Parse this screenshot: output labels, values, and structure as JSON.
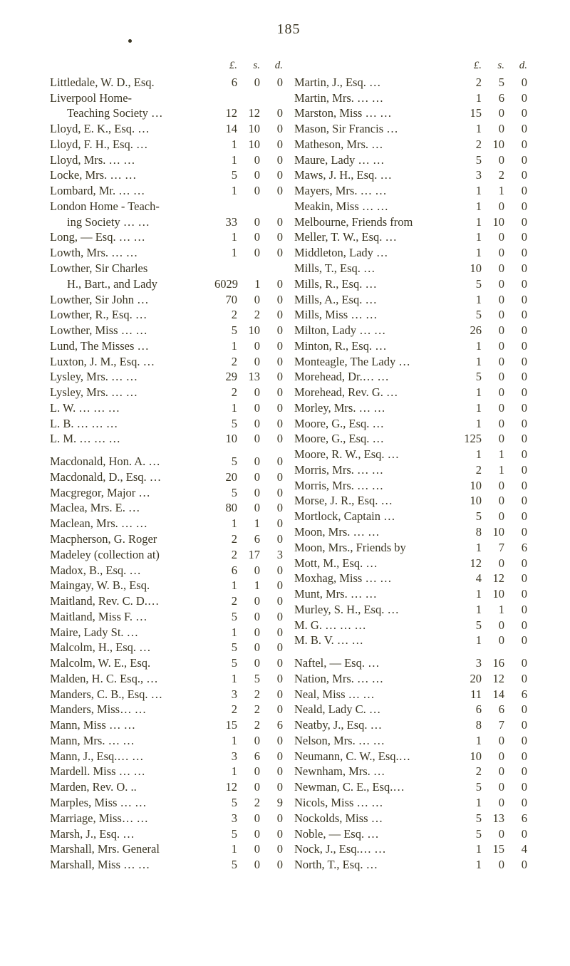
{
  "page_number": "185",
  "currency_headers": [
    "£.",
    "s.",
    "d."
  ],
  "left": [
    {
      "name": "Littledale, W. D., Esq.",
      "l": "6",
      "s": "0",
      "d": "0"
    },
    {
      "name": "Liverpool Home-",
      "cont": true
    },
    {
      "name": "Teaching Society   …",
      "l": "12",
      "s": "12",
      "d": "0",
      "indent": true
    },
    {
      "name": "Lloyd, E. K., Esq.     …",
      "l": "14",
      "s": "10",
      "d": "0"
    },
    {
      "name": "Lloyd, F. H., Esq.    …",
      "l": "1",
      "s": "10",
      "d": "0"
    },
    {
      "name": "Lloyd, Mrs.    …       …",
      "l": "1",
      "s": "0",
      "d": "0"
    },
    {
      "name": "Locke, Mrs.    …       …",
      "l": "5",
      "s": "0",
      "d": "0"
    },
    {
      "name": "Lombard, Mr. …       …",
      "l": "1",
      "s": "0",
      "d": "0"
    },
    {
      "name": "London  Home - Teach-",
      "cont": true
    },
    {
      "name": "ing Society …       …",
      "l": "33",
      "s": "0",
      "d": "0",
      "indent": true
    },
    {
      "name": "Long, — Esq. …       …",
      "l": "1",
      "s": "0",
      "d": "0"
    },
    {
      "name": "Lowth, Mrs.  …       …",
      "l": "1",
      "s": "0",
      "d": "0"
    },
    {
      "name": "Lowther,  Sir  Charles",
      "cont": true
    },
    {
      "name": "H., Bart., and Lady",
      "l": "6029",
      "s": "1",
      "d": "0",
      "indent": true
    },
    {
      "name": "Lowther, Sir John     …",
      "l": "70",
      "s": "0",
      "d": "0"
    },
    {
      "name": "Lowther, R., Esq.     …",
      "l": "2",
      "s": "2",
      "d": "0"
    },
    {
      "name": "Lowther, Miss …      …",
      "l": "5",
      "s": "10",
      "d": "0"
    },
    {
      "name": "Lund, The Misses     …",
      "l": "1",
      "s": "0",
      "d": "0"
    },
    {
      "name": "Luxton, J. M., Esq.   …",
      "l": "2",
      "s": "0",
      "d": "0"
    },
    {
      "name": "Lysley, Mrs.    …      …",
      "l": "29",
      "s": "13",
      "d": "0"
    },
    {
      "name": "Lysley, Mrs.    …      …",
      "l": "2",
      "s": "0",
      "d": "0"
    },
    {
      "name": "L. W.   …       …       …",
      "l": "1",
      "s": "0",
      "d": "0"
    },
    {
      "name": "L. B.    …       …       …",
      "l": "5",
      "s": "0",
      "d": "0"
    },
    {
      "name": "L. M.   …       …       …",
      "l": "10",
      "s": "0",
      "d": "0"
    },
    {
      "spacer": true
    },
    {
      "name": "Macdonald, Hon. A. …",
      "l": "5",
      "s": "0",
      "d": "0"
    },
    {
      "name": "Macdonald, D., Esq.  …",
      "l": "20",
      "s": "0",
      "d": "0"
    },
    {
      "name": "Macgregor, Major     …",
      "l": "5",
      "s": "0",
      "d": "0"
    },
    {
      "name": "Maclea, Mrs. E.       …",
      "l": "80",
      "s": "0",
      "d": "0"
    },
    {
      "name": "Maclean, Mrs. …      …",
      "l": "1",
      "s": "1",
      "d": "0"
    },
    {
      "name": "Macpherson, G.  Roger",
      "l": "2",
      "s": "6",
      "d": "0"
    },
    {
      "name": "Madeley  (collection  at)",
      "l": "2",
      "s": "17",
      "d": "3"
    },
    {
      "name": "Madox, B., Esq.       …",
      "l": "6",
      "s": "0",
      "d": "0"
    },
    {
      "name": "Maingay, W. B., Esq.",
      "l": "1",
      "s": "1",
      "d": "0"
    },
    {
      "name": "Maitland, Rev. C. D.…",
      "l": "2",
      "s": "0",
      "d": "0"
    },
    {
      "name": "Maitland, Miss F.     …",
      "l": "5",
      "s": "0",
      "d": "0"
    },
    {
      "name": "Maire, Lady St.        …",
      "l": "1",
      "s": "0",
      "d": "0"
    },
    {
      "name": "Malcolm, H., Esq.    …",
      "l": "5",
      "s": "0",
      "d": "0"
    },
    {
      "name": "Malcolm, W. E., Esq.",
      "l": "5",
      "s": "0",
      "d": "0"
    },
    {
      "name": "Malden, H. C. Esq., …",
      "l": "1",
      "s": "5",
      "d": "0"
    },
    {
      "name": "Manders, C. B., Esq. …",
      "l": "3",
      "s": "2",
      "d": "0"
    },
    {
      "name": "Manders, Miss…       …",
      "l": "2",
      "s": "2",
      "d": "0"
    },
    {
      "name": "Mann, Miss     …      …",
      "l": "15",
      "s": "2",
      "d": "6"
    },
    {
      "name": "Mann, Mrs.     …      …",
      "l": "1",
      "s": "0",
      "d": "0"
    },
    {
      "name": "Mann, J., Esq.…       …",
      "l": "3",
      "s": "6",
      "d": "0"
    },
    {
      "name": "Mardell. Miss  …      …",
      "l": "1",
      "s": "0",
      "d": "0"
    },
    {
      "name": "Marden, Rev. O.      ..",
      "l": "12",
      "s": "0",
      "d": "0"
    },
    {
      "name": "Marples, Miss …      …",
      "l": "5",
      "s": "2",
      "d": "9"
    },
    {
      "name": "Marriage, Miss…      …",
      "l": "3",
      "s": "0",
      "d": "0"
    },
    {
      "name": "Marsh, J., Esq.        …",
      "l": "5",
      "s": "0",
      "d": "0"
    },
    {
      "name": "Marshall, Mrs. General",
      "l": "1",
      "s": "0",
      "d": "0"
    },
    {
      "name": "Marshall, Miss …      …",
      "l": "5",
      "s": "0",
      "d": "0"
    }
  ],
  "right": [
    {
      "name": "Martin, J., Esq.        …",
      "l": "2",
      "s": "5",
      "d": "0"
    },
    {
      "name": "Martin, Mrs.  …       …",
      "l": "1",
      "s": "6",
      "d": "0"
    },
    {
      "name": "Marston, Miss …      …",
      "l": "15",
      "s": "0",
      "d": "0"
    },
    {
      "name": "Mason, Sir Francis   …",
      "l": "1",
      "s": "0",
      "d": "0"
    },
    {
      "name": "Matheson, Mrs.        …",
      "l": "2",
      "s": "10",
      "d": "0"
    },
    {
      "name": "Maure, Lady   …      …",
      "l": "5",
      "s": "0",
      "d": "0"
    },
    {
      "name": "Maws, J. H., Esq.    …",
      "l": "3",
      "s": "2",
      "d": "0"
    },
    {
      "name": "Mayers, Mrs.  …      …",
      "l": "1",
      "s": "1",
      "d": "0"
    },
    {
      "name": "Meakin, Miss …       …",
      "l": "1",
      "s": "0",
      "d": "0"
    },
    {
      "name": "Melbourne, Friends from",
      "l": "1",
      "s": "10",
      "d": "0"
    },
    {
      "name": "Meller, T. W., Esq.  …",
      "l": "1",
      "s": "0",
      "d": "0"
    },
    {
      "name": "Middleton, Lady       …",
      "l": "1",
      "s": "0",
      "d": "0"
    },
    {
      "name": "Mills, T., Esq.          …",
      "l": "10",
      "s": "0",
      "d": "0"
    },
    {
      "name": "Mills, R., Esq.          …",
      "l": "5",
      "s": "0",
      "d": "0"
    },
    {
      "name": "Mills, A., Esq.          …",
      "l": "1",
      "s": "0",
      "d": "0"
    },
    {
      "name": "Mills, Miss       …     …",
      "l": "5",
      "s": "0",
      "d": "0"
    },
    {
      "name": "Milton, Lady   …      …",
      "l": "26",
      "s": "0",
      "d": "0"
    },
    {
      "name": "Minton, R., Esq.       …",
      "l": "1",
      "s": "0",
      "d": "0"
    },
    {
      "name": "Monteagle, The Lady …",
      "l": "1",
      "s": "0",
      "d": "0"
    },
    {
      "name": "Morehead, Dr.…        …",
      "l": "5",
      "s": "0",
      "d": "0"
    },
    {
      "name": "Morehead, Rev. G.   …",
      "l": "1",
      "s": "0",
      "d": "0"
    },
    {
      "name": "Morley, Mrs.   …      …",
      "l": "1",
      "s": "0",
      "d": "0"
    },
    {
      "name": "Moore, G., Esq.        …",
      "l": "1",
      "s": "0",
      "d": "0"
    },
    {
      "name": "Moore, G., Esq.        …",
      "l": "125",
      "s": "0",
      "d": "0"
    },
    {
      "name": "Moore, R. W., Esq.   …",
      "l": "1",
      "s": "1",
      "d": "0"
    },
    {
      "name": "Morris, Mrs.    …      …",
      "l": "2",
      "s": "1",
      "d": "0"
    },
    {
      "name": "Morris, Mrs.    …      …",
      "l": "10",
      "s": "0",
      "d": "0"
    },
    {
      "name": "Morse, J. R., Esq.    …",
      "l": "10",
      "s": "0",
      "d": "0"
    },
    {
      "name": "Mortlock, Captain     …",
      "l": "5",
      "s": "0",
      "d": "0"
    },
    {
      "name": "Moon, Mrs.      …     …",
      "l": "8",
      "s": "10",
      "d": "0"
    },
    {
      "name": "Moon, Mrs., Friends by",
      "l": "1",
      "s": "7",
      "d": "6"
    },
    {
      "name": "Mott, M., Esq.          …",
      "l": "12",
      "s": "0",
      "d": "0"
    },
    {
      "name": "Moxhag, Miss …      …",
      "l": "4",
      "s": "12",
      "d": "0"
    },
    {
      "name": "Munt, Mrs.      …      …",
      "l": "1",
      "s": "10",
      "d": "0"
    },
    {
      "name": "Murley, S. H., Esq.  …",
      "l": "1",
      "s": "1",
      "d": "0"
    },
    {
      "name": "M. G.   …       …      …",
      "l": "5",
      "s": "0",
      "d": "0"
    },
    {
      "name": "M. B. V.         …      …",
      "l": "1",
      "s": "0",
      "d": "0"
    },
    {
      "spacer": true
    },
    {
      "name": "Naftel, — Esq.          …",
      "l": "3",
      "s": "16",
      "d": "0"
    },
    {
      "name": "Nation, Mrs.   …      …",
      "l": "20",
      "s": "12",
      "d": "0"
    },
    {
      "name": "Neal, Miss       …     …",
      "l": "11",
      "s": "14",
      "d": "6"
    },
    {
      "name": "Neald, Lady C.         …",
      "l": "6",
      "s": "6",
      "d": "0"
    },
    {
      "name": "Neatby, J., Esq.        …",
      "l": "8",
      "s": "7",
      "d": "0"
    },
    {
      "name": "Nelson, Mrs.    …     …",
      "l": "1",
      "s": "0",
      "d": "0"
    },
    {
      "name": "Neumann, C. W., Esq.…",
      "l": "10",
      "s": "0",
      "d": "0"
    },
    {
      "name": "Newnham, Mrs.       …",
      "l": "2",
      "s": "0",
      "d": "0"
    },
    {
      "name": "Newman, C. E., Esq.…",
      "l": "5",
      "s": "0",
      "d": "0"
    },
    {
      "name": "Nicols, Miss    …      …",
      "l": "1",
      "s": "0",
      "d": "0"
    },
    {
      "name": "Nockolds, Miss         …",
      "l": "5",
      "s": "13",
      "d": "6"
    },
    {
      "name": "Noble, — Esq.          …",
      "l": "5",
      "s": "0",
      "d": "0"
    },
    {
      "name": "Nock, J., Esq.…       …",
      "l": "1",
      "s": "15",
      "d": "4"
    },
    {
      "name": "North, T., Esq.         …",
      "l": "1",
      "s": "0",
      "d": "0"
    }
  ]
}
